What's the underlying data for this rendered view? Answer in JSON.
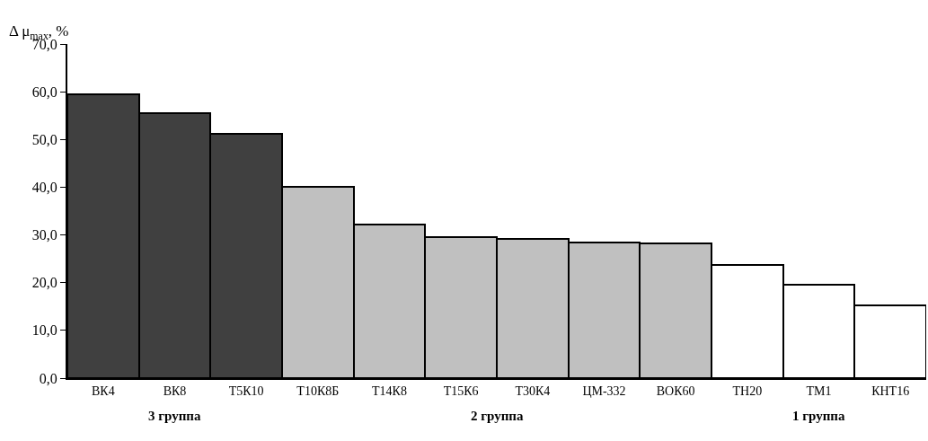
{
  "chart_data": {
    "type": "bar",
    "ylabel": "Δ μ$_{max}$, %",
    "categories": [
      "ВК4",
      "ВК8",
      "Т5К10",
      "Т10К8Б",
      "Т14К8",
      "Т15К6",
      "Т30К4",
      "ЦМ-332",
      "ВОК60",
      "ТН20",
      "ТМ1",
      "КНТ16"
    ],
    "values": [
      59.4,
      55.5,
      51.1,
      40.1,
      32.2,
      29.6,
      29.2,
      28.5,
      28.3,
      23.8,
      19.5,
      15.3
    ],
    "colors": [
      "#404040",
      "#404040",
      "#404040",
      "#c0c0c0",
      "#c0c0c0",
      "#c0c0c0",
      "#c0c0c0",
      "#c0c0c0",
      "#c0c0c0",
      "#ffffff",
      "#ffffff",
      "#ffffff"
    ],
    "ylim": [
      0,
      70
    ],
    "yticks": [
      {
        "value": 0,
        "label": "0,0"
      },
      {
        "value": 10,
        "label": "10,0"
      },
      {
        "value": 20,
        "label": "20,0"
      },
      {
        "value": 30,
        "label": "30,0"
      },
      {
        "value": 40,
        "label": "40,0"
      },
      {
        "value": 50,
        "label": "50,0"
      },
      {
        "value": 60,
        "label": "60,0"
      },
      {
        "value": 70,
        "label": "70,0"
      }
    ],
    "annotations": [
      "3 группа",
      "2 группа",
      "1 группа"
    ]
  }
}
